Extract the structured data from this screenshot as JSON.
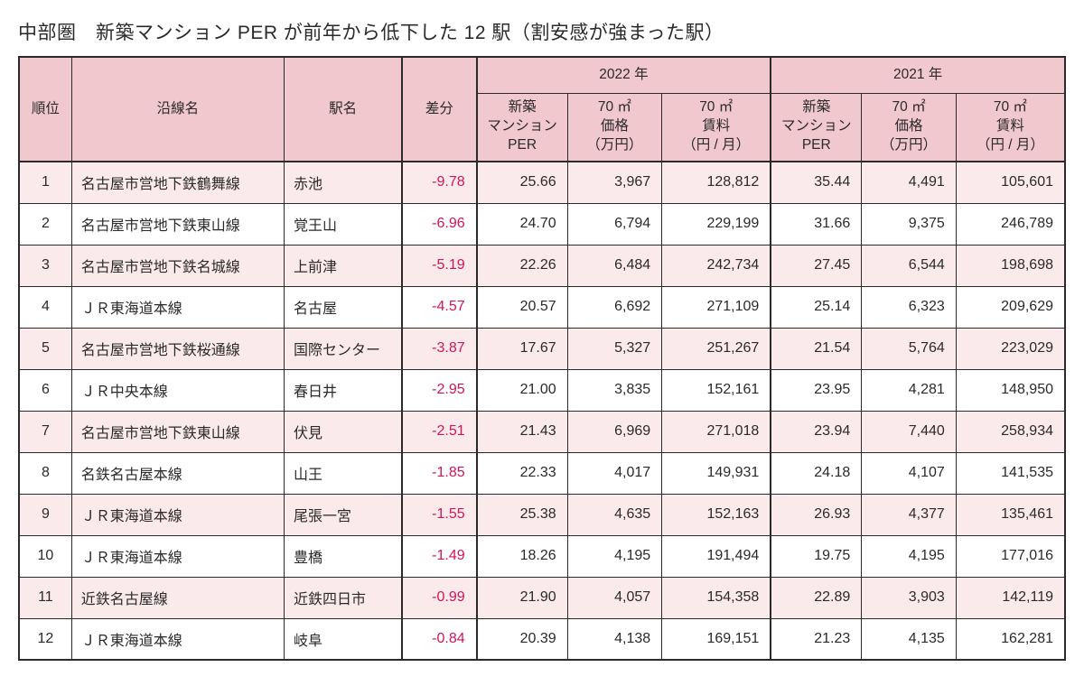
{
  "title": "中部圏　新築マンション PER が前年から低下した 12 駅（割安感が強まった駅）",
  "colors": {
    "header_bg": "#f0c8ce",
    "stripe_odd": "#fbeaec",
    "stripe_even": "#ffffff",
    "border": "#2a2a2a",
    "diff_color": "#d4145a",
    "text": "#2a2a2a"
  },
  "headers": {
    "rank": "順位",
    "line": "沿線名",
    "station": "駅名",
    "diff": "差分",
    "year_2022": "2022 年",
    "year_2021": "2021 年",
    "per": "新築\nマンション\nPER",
    "price": "70 ㎡\n価格\n（万円）",
    "rent": "70 ㎡\n賃料\n（円 / 月）"
  },
  "rows": [
    {
      "rank": "1",
      "line": "名古屋市営地下鉄鶴舞線",
      "station": "赤池",
      "diff": "-9.78",
      "per22": "25.66",
      "price22": "3,967",
      "rent22": "128,812",
      "per21": "35.44",
      "price21": "4,491",
      "rent21": "105,601"
    },
    {
      "rank": "2",
      "line": "名古屋市営地下鉄東山線",
      "station": "覚王山",
      "diff": "-6.96",
      "per22": "24.70",
      "price22": "6,794",
      "rent22": "229,199",
      "per21": "31.66",
      "price21": "9,375",
      "rent21": "246,789"
    },
    {
      "rank": "3",
      "line": "名古屋市営地下鉄名城線",
      "station": "上前津",
      "diff": "-5.19",
      "per22": "22.26",
      "price22": "6,484",
      "rent22": "242,734",
      "per21": "27.45",
      "price21": "6,544",
      "rent21": "198,698"
    },
    {
      "rank": "4",
      "line": "ＪＲ東海道本線",
      "station": "名古屋",
      "diff": "-4.57",
      "per22": "20.57",
      "price22": "6,692",
      "rent22": "271,109",
      "per21": "25.14",
      "price21": "6,323",
      "rent21": "209,629"
    },
    {
      "rank": "5",
      "line": "名古屋市営地下鉄桜通線",
      "station": "国際センター",
      "diff": "-3.87",
      "per22": "17.67",
      "price22": "5,327",
      "rent22": "251,267",
      "per21": "21.54",
      "price21": "5,764",
      "rent21": "223,029"
    },
    {
      "rank": "6",
      "line": "ＪＲ中央本線",
      "station": "春日井",
      "diff": "-2.95",
      "per22": "21.00",
      "price22": "3,835",
      "rent22": "152,161",
      "per21": "23.95",
      "price21": "4,281",
      "rent21": "148,950"
    },
    {
      "rank": "7",
      "line": "名古屋市営地下鉄東山線",
      "station": "伏見",
      "diff": "-2.51",
      "per22": "21.43",
      "price22": "6,969",
      "rent22": "271,018",
      "per21": "23.94",
      "price21": "7,440",
      "rent21": "258,934"
    },
    {
      "rank": "8",
      "line": "名鉄名古屋本線",
      "station": "山王",
      "diff": "-1.85",
      "per22": "22.33",
      "price22": "4,017",
      "rent22": "149,931",
      "per21": "24.18",
      "price21": "4,107",
      "rent21": "141,535"
    },
    {
      "rank": "9",
      "line": "ＪＲ東海道本線",
      "station": "尾張一宮",
      "diff": "-1.55",
      "per22": "25.38",
      "price22": "4,635",
      "rent22": "152,163",
      "per21": "26.93",
      "price21": "4,377",
      "rent21": "135,461"
    },
    {
      "rank": "10",
      "line": "ＪＲ東海道本線",
      "station": "豊橋",
      "diff": "-1.49",
      "per22": "18.26",
      "price22": "4,195",
      "rent22": "191,494",
      "per21": "19.75",
      "price21": "4,195",
      "rent21": "177,016"
    },
    {
      "rank": "11",
      "line": "近鉄名古屋線",
      "station": "近鉄四日市",
      "diff": "-0.99",
      "per22": "21.90",
      "price22": "4,057",
      "rent22": "154,358",
      "per21": "22.89",
      "price21": "3,903",
      "rent21": "142,119"
    },
    {
      "rank": "12",
      "line": "ＪＲ東海道本線",
      "station": "岐阜",
      "diff": "-0.84",
      "per22": "20.39",
      "price22": "4,138",
      "rent22": "169,151",
      "per21": "21.23",
      "price21": "4,135",
      "rent21": "162,281"
    }
  ]
}
